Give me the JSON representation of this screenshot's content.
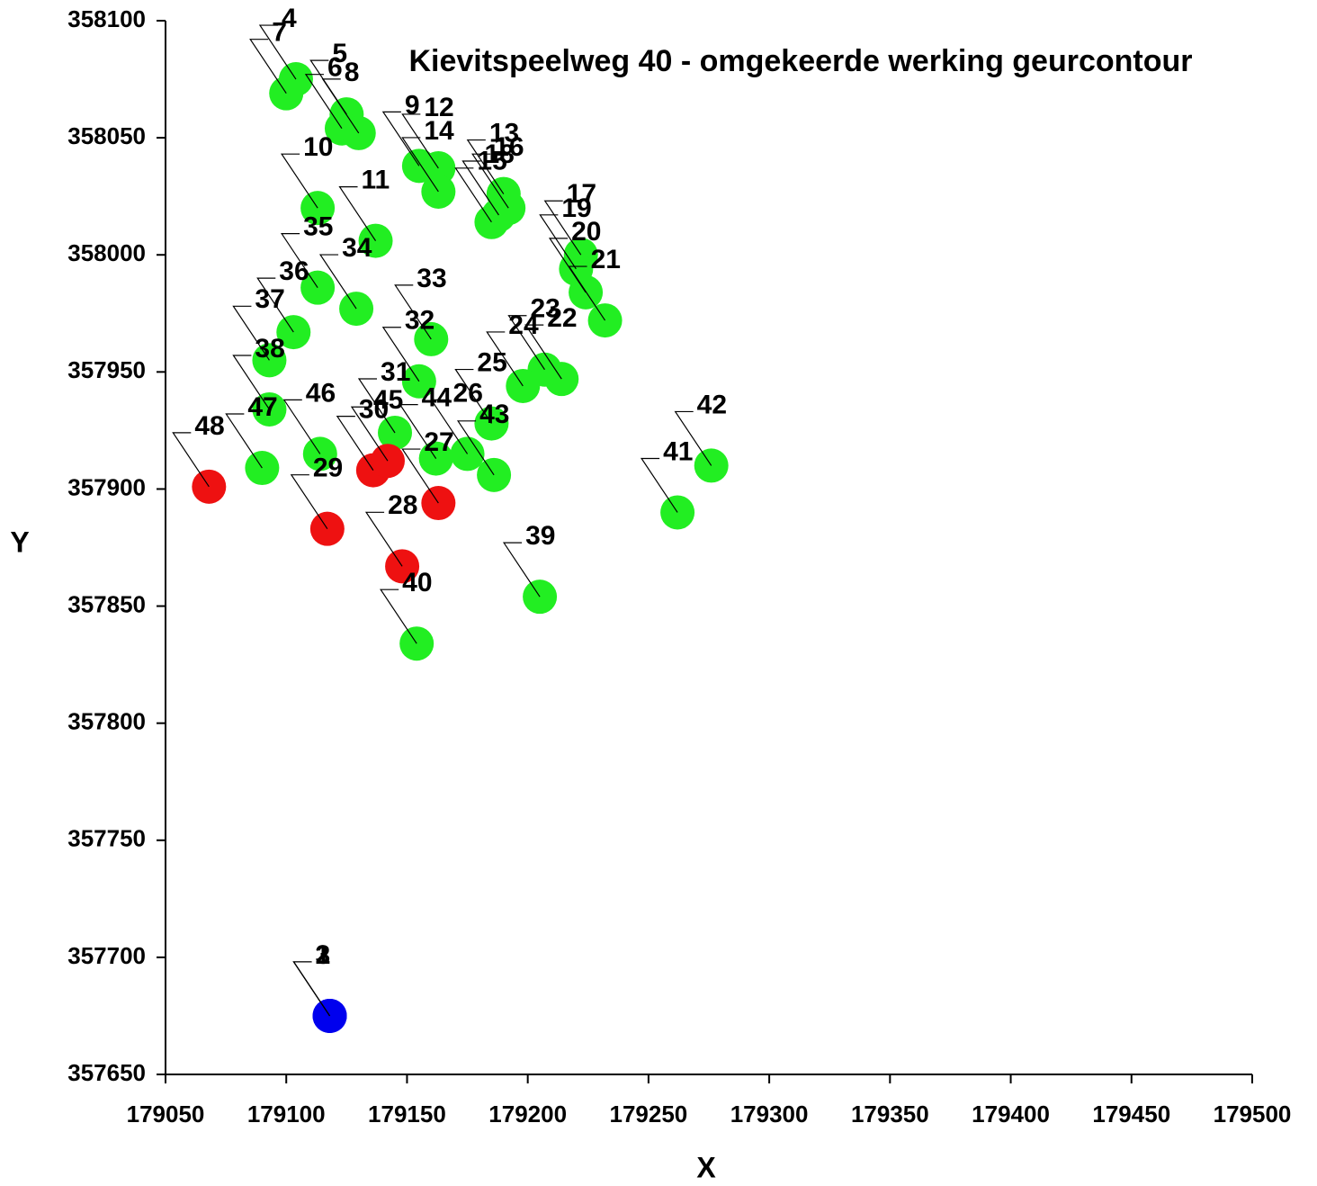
{
  "chart_data": {
    "type": "scatter",
    "title": "Kievitspeelweg 40 - omgekeerde werking geurcontour",
    "x_label": "X",
    "y_label": "Y",
    "point_labels": [
      "1",
      "2",
      "3",
      "4",
      "5",
      "6",
      "7",
      "8",
      "9",
      "10",
      "11",
      "12",
      "13",
      "14",
      "15",
      "16",
      "17",
      "18",
      "19",
      "20",
      "21",
      "22",
      "23",
      "24",
      "25",
      "26",
      "27",
      "28",
      "29",
      "30",
      "31",
      "32",
      "33",
      "34",
      "35",
      "36",
      "37",
      "38",
      "39",
      "40",
      "41",
      "42",
      "43",
      "44",
      "45",
      "46",
      "47",
      "48"
    ],
    "x": [
      179118,
      179118,
      179118,
      179104,
      179125,
      179123,
      179100,
      179130,
      179155,
      179113,
      179137,
      179163,
      179190,
      179163,
      179185,
      179192,
      179222,
      179188,
      179220,
      179224,
      179232,
      179214,
      179207,
      179198,
      179185,
      179175,
      179163,
      179148,
      179117,
      179136,
      179145,
      179155,
      179160,
      179129,
      179113,
      179103,
      179093,
      179093,
      179205,
      179154,
      179262,
      179276,
      179186,
      179162,
      179142,
      179114,
      179090,
      179068
    ],
    "values": [
      357675,
      357675,
      357675,
      358075,
      358060,
      358054,
      358069,
      358052,
      358038,
      358020,
      358006,
      358037,
      358026,
      358027,
      358014,
      358020,
      358000,
      358017,
      357994,
      357984,
      357972,
      357947,
      357951,
      357944,
      357928,
      357915,
      357894,
      357867,
      357883,
      357908,
      357924,
      357946,
      357964,
      357977,
      357986,
      357967,
      357955,
      357934,
      357854,
      357834,
      357890,
      357910,
      357906,
      357913,
      357912,
      357915,
      357909,
      357901
    ],
    "point_colors": [
      "#0000ee",
      "#0000ee",
      "#0000ee",
      "#22ee22",
      "#22ee22",
      "#22ee22",
      "#22ee22",
      "#22ee22",
      "#22ee22",
      "#22ee22",
      "#22ee22",
      "#22ee22",
      "#22ee22",
      "#22ee22",
      "#22ee22",
      "#22ee22",
      "#22ee22",
      "#22ee22",
      "#22ee22",
      "#22ee22",
      "#22ee22",
      "#22ee22",
      "#22ee22",
      "#22ee22",
      "#22ee22",
      "#22ee22",
      "#ee1111",
      "#ee1111",
      "#ee1111",
      "#ee1111",
      "#22ee22",
      "#22ee22",
      "#22ee22",
      "#22ee22",
      "#22ee22",
      "#22ee22",
      "#22ee22",
      "#22ee22",
      "#22ee22",
      "#22ee22",
      "#22ee22",
      "#22ee22",
      "#22ee22",
      "#22ee22",
      "#ee1111",
      "#22ee22",
      "#22ee22",
      "#ee1111"
    ],
    "xlim": [
      179050,
      179500
    ],
    "xticks": [
      179050,
      179100,
      179150,
      179200,
      179250,
      179300,
      179350,
      179400,
      179450,
      179500
    ],
    "ylim": [
      357650,
      358100
    ],
    "yticks": [
      357650,
      357700,
      357750,
      357800,
      357850,
      357900,
      357950,
      358000,
      358050,
      358100
    ]
  }
}
